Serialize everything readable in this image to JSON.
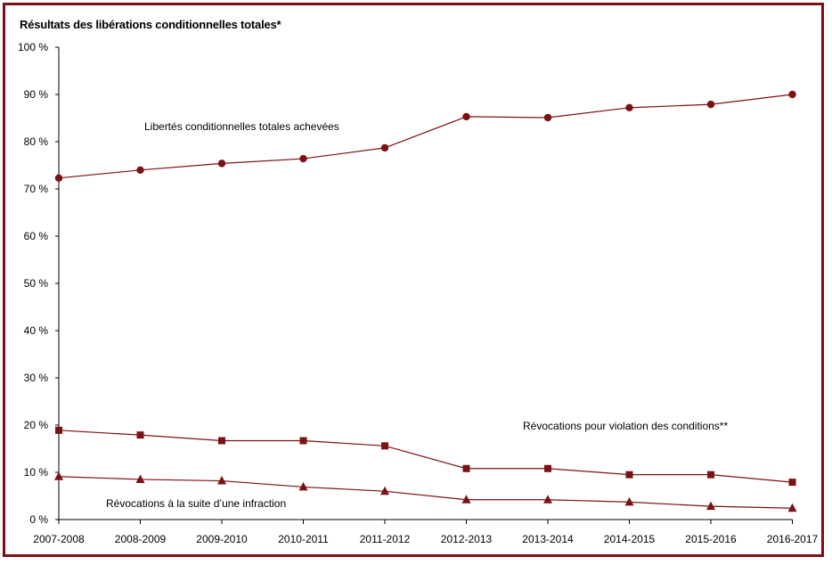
{
  "chart_data": {
    "type": "line",
    "title": "Résultats des libérations conditionnelles totales*",
    "xlabel": "",
    "ylabel": "",
    "categories": [
      "2007-2008",
      "2008-2009",
      "2009-2010",
      "2010-2011",
      "2011-2012",
      "2012-2013",
      "2013-2014",
      "2014-2015",
      "2015-2016",
      "2016-2017"
    ],
    "y_ticks": [
      "0 %",
      "10 %",
      "20 %",
      "30 %",
      "40 %",
      "50 %",
      "60 %",
      "70 %",
      "80 %",
      "90 %",
      "100 %"
    ],
    "ylim": [
      0,
      100
    ],
    "grid": false,
    "color": "#7b1113",
    "series": [
      {
        "name": "Libertés conditionnelles totales achevées",
        "marker": "circle",
        "values": [
          72.3,
          74.0,
          75.4,
          76.4,
          78.7,
          85.3,
          85.1,
          87.2,
          87.9,
          90.0
        ]
      },
      {
        "name": "Révocations pour violation des conditions**",
        "marker": "square",
        "values": [
          18.9,
          17.9,
          16.7,
          16.7,
          15.6,
          10.8,
          10.8,
          9.5,
          9.5,
          7.9
        ]
      },
      {
        "name": "Révocations à la suite d’une infraction",
        "marker": "triangle",
        "values": [
          9.1,
          8.5,
          8.2,
          6.9,
          6.0,
          4.2,
          4.2,
          3.7,
          2.8,
          2.4
        ]
      }
    ]
  }
}
